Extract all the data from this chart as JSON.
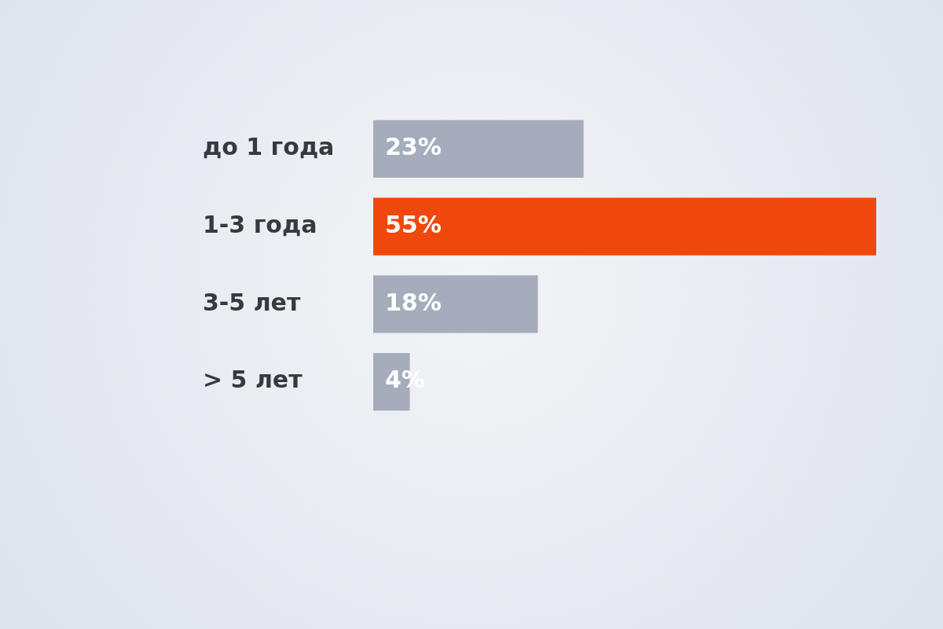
{
  "chart_data": {
    "type": "bar",
    "orientation": "horizontal",
    "categories": [
      "до 1 года",
      "1-3 года",
      "3-5 лет",
      "> 5 лет"
    ],
    "values": [
      23,
      55,
      18,
      4
    ],
    "colors": [
      "#a5acbb",
      "#f0470c",
      "#a5acbb",
      "#a5acbb"
    ],
    "value_labels": [
      "23%",
      "55%",
      "18%",
      "4%"
    ],
    "grid": false,
    "legend": false
  }
}
